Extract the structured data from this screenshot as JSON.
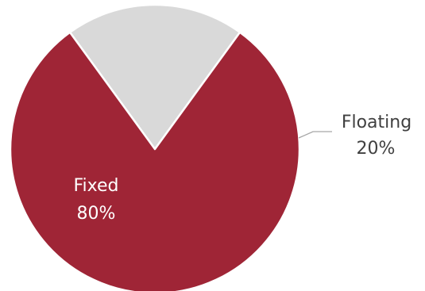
{
  "chart_data": {
    "type": "pie",
    "title": "",
    "slices": [
      {
        "name": "Fixed",
        "value": 80,
        "value_label": "80%",
        "color": "#9f2536",
        "label_color": "#ffffff",
        "label_position": "inside"
      },
      {
        "name": "Floating",
        "value": 20,
        "value_label": "20%",
        "color": "#d9d9d9",
        "label_color": "#404040",
        "label_position": "outside"
      }
    ],
    "legend": "none",
    "leader_line_color": "#a6a6a6"
  }
}
